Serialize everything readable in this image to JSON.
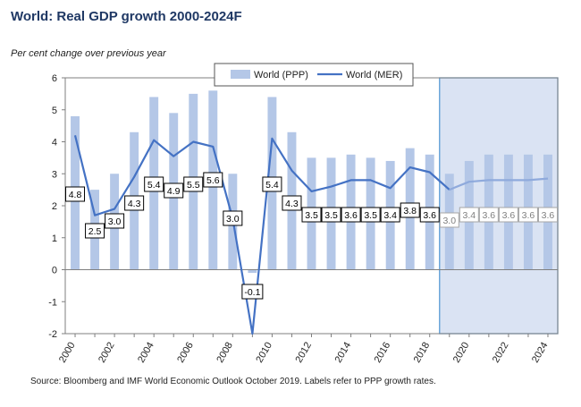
{
  "title": "World: Real GDP growth 2000-2024F",
  "source": "Source: Bloomberg and IMF World Economic Outlook October 2019.  Labels refer to PPP growth rates.",
  "chart_data": {
    "type": "bar",
    "ylabel": "Per cent change over previous year",
    "ylim": [
      -2,
      6
    ],
    "yticks": [
      -2,
      -1,
      0,
      1,
      2,
      3,
      4,
      5,
      6
    ],
    "xtick_years": [
      2000,
      2002,
      2004,
      2006,
      2008,
      2010,
      2012,
      2014,
      2016,
      2018,
      2020,
      2022,
      2024
    ],
    "years": [
      2000,
      2001,
      2002,
      2003,
      2004,
      2005,
      2006,
      2007,
      2008,
      2009,
      2010,
      2011,
      2012,
      2013,
      2014,
      2015,
      2016,
      2017,
      2018,
      2019,
      2020,
      2021,
      2022,
      2023,
      2024
    ],
    "forecast_start_year": 2019,
    "legend_position": "top",
    "series": [
      {
        "name": "World (PPP)",
        "type": "bar",
        "color": "#b4c7e7",
        "values": [
          4.8,
          2.5,
          3.0,
          4.3,
          5.4,
          4.9,
          5.5,
          5.6,
          3.0,
          -0.1,
          5.4,
          4.3,
          3.5,
          3.5,
          3.6,
          3.5,
          3.4,
          3.8,
          3.6,
          3.0,
          3.4,
          3.6,
          3.6,
          3.6,
          3.6
        ],
        "labels": [
          "4.8",
          "2.5",
          "3.0",
          "4.3",
          "5.4",
          "4.9",
          "5.5",
          "5.6",
          "3.0",
          "-0.1",
          "5.4",
          "4.3",
          "3.5",
          "3.5",
          "3.6",
          "3.5",
          "3.4",
          "3.8",
          "3.6",
          "3.0",
          "3.4",
          "3.6",
          "3.6",
          "3.6",
          "3.6"
        ]
      },
      {
        "name": "World (MER)",
        "type": "line",
        "color": "#4472c4",
        "values": [
          4.2,
          1.7,
          1.9,
          2.9,
          4.05,
          3.55,
          4.0,
          3.85,
          1.6,
          -2.0,
          4.1,
          3.1,
          2.45,
          2.6,
          2.8,
          2.8,
          2.55,
          3.2,
          3.05,
          2.5,
          2.75,
          2.8,
          2.8,
          2.8,
          2.85
        ]
      }
    ],
    "forecast_shade_color": "#dae3f3",
    "forecast_border_color": "#5b9bd5"
  }
}
